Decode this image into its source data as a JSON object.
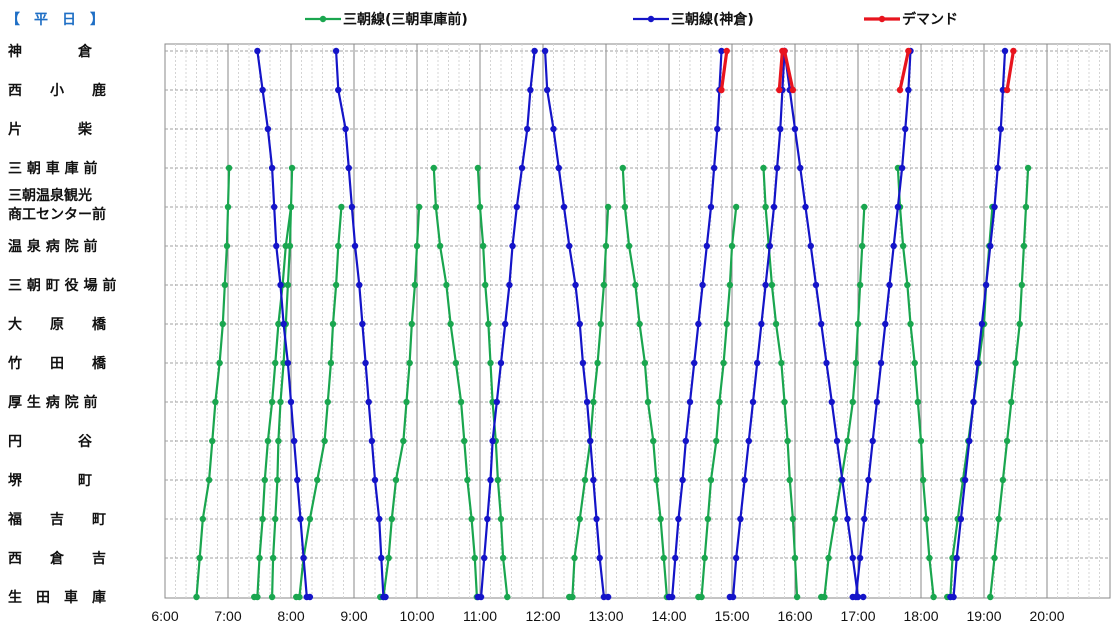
{
  "chart_data": {
    "type": "line",
    "title": "【　平　日　】",
    "x_unit": "time",
    "xlim": [
      "6:00",
      "21:00"
    ],
    "x_ticks": [
      "6:00",
      "7:00",
      "8:00",
      "9:00",
      "10:00",
      "11:00",
      "12:00",
      "13:00",
      "14:00",
      "15:00",
      "16:00",
      "17:00",
      "18:00",
      "19:00",
      "20:00"
    ],
    "stops": [
      "神　　　　倉",
      "西　　小　　鹿",
      "片　　　　柴",
      "三 朝 車 庫 前",
      "三朝温泉観光",
      "商工センター前",
      "温 泉 病 院 前",
      "三 朝 町 役 場 前",
      "大　　原　　橋",
      "竹　　田　　橋",
      "厚 生 病 院 前",
      "円　　　　谷",
      "堺　　　　町",
      "福　　吉　　町",
      "西　　倉　　吉",
      "生　田　車　庫"
    ],
    "grid": true,
    "legend_position": "top",
    "series": [
      {
        "name": "三朝線(三朝車庫前)",
        "color": "#1aa64f",
        "trips": [
          {
            "start_stop": 3,
            "times": [
              "7:01",
              "7:00",
              "6:59",
              "6:57",
              "6:55",
              "6:52",
              "6:48",
              "6:45",
              "6:42",
              "6:36",
              "6:33",
              "6:30"
            ]
          },
          {
            "start_stop": 15,
            "times": [
              "7:25",
              "7:28",
              "7:30",
              "7:33",
              "7:35",
              "7:38",
              "7:42",
              "7:45",
              "7:48",
              "7:52",
              "7:55",
              "8:00"
            ]
          },
          {
            "start_stop": 3,
            "times": [
              "8:01",
              "8:00",
              "7:59",
              "7:57",
              "7:55",
              "7:53",
              "7:50",
              "7:48",
              "7:47",
              "7:45",
              "7:43",
              "7:42"
            ]
          },
          {
            "start_stop": 15,
            "times": [
              "8:05",
              "8:08",
              "8:12",
              "8:18",
              "8:25",
              "8:32",
              "8:35",
              "8:38",
              "8:40",
              "8:43",
              "8:45",
              "8:48"
            ]
          },
          {
            "start_stop": 15,
            "times": [
              "9:25",
              "9:28",
              "9:33",
              "9:36",
              "9:40",
              "9:47",
              "9:50",
              "9:53",
              "9:55",
              "9:58",
              "10:00",
              "10:02"
            ]
          },
          {
            "start_stop": 3,
            "times": [
              "10:16",
              "10:18",
              "10:22",
              "10:28",
              "10:32",
              "10:37",
              "10:42",
              "10:45",
              "10:48",
              "10:52",
              "10:55",
              "10:57"
            ]
          },
          {
            "start_stop": 3,
            "times": [
              "10:58",
              "11:00",
              "11:03",
              "11:05",
              "11:08",
              "11:10",
              "11:12",
              "11:15",
              "11:17",
              "11:20",
              "11:22",
              "11:26"
            ]
          },
          {
            "start_stop": 15,
            "times": [
              "12:25",
              "12:28",
              "12:30",
              "12:35",
              "12:40",
              "12:45",
              "12:48",
              "12:52",
              "12:55",
              "12:58",
              "13:00",
              "13:02"
            ]
          },
          {
            "start_stop": 3,
            "times": [
              "13:16",
              "13:18",
              "13:22",
              "13:28",
              "13:32",
              "13:37",
              "13:40",
              "13:45",
              "13:48",
              "13:52",
              "13:55",
              "13:58"
            ]
          },
          {
            "start_stop": 15,
            "times": [
              "14:28",
              "14:31",
              "14:34",
              "14:37",
              "14:40",
              "14:45",
              "14:48",
              "14:52",
              "14:55",
              "14:58",
              "15:00",
              "15:04"
            ]
          },
          {
            "start_stop": 3,
            "times": [
              "15:30",
              "15:32",
              "15:35",
              "15:38",
              "15:42",
              "15:47",
              "15:50",
              "15:53",
              "15:55",
              "15:58",
              "16:00",
              "16:02"
            ]
          },
          {
            "start_stop": 15,
            "times": [
              "16:25",
              "16:28",
              "16:32",
              "16:38",
              "16:44",
              "16:50",
              "16:55",
              "16:58",
              "17:00",
              "17:02",
              "17:04",
              "17:06"
            ]
          },
          {
            "start_stop": 3,
            "times": [
              "17:38",
              "17:40",
              "17:43",
              "17:47",
              "17:50",
              "17:54",
              "17:57",
              "18:00",
              "18:02",
              "18:05",
              "18:08",
              "18:12"
            ]
          },
          {
            "start_stop": 15,
            "times": [
              "18:25",
              "18:28",
              "18:30",
              "18:35",
              "18:40",
              "18:45",
              "18:50",
              "18:55",
              "19:00",
              "19:02",
              "19:05",
              "19:08"
            ]
          },
          {
            "start_stop": 3,
            "times": [
              "19:42",
              "19:40",
              "19:38",
              "19:36",
              "19:34",
              "19:30",
              "19:26",
              "19:22",
              "19:18",
              "19:14",
              "19:10",
              "19:06"
            ]
          }
        ]
      },
      {
        "name": "三朝線(神倉)",
        "color": "#1414c8",
        "trips": [
          {
            "start_stop": 0,
            "times": [
              "7:28",
              "7:33",
              "7:38",
              "7:42",
              "7:44",
              "7:46",
              "7:50",
              "7:53",
              "7:57",
              "8:00",
              "8:03",
              "8:06",
              "8:09",
              "8:12",
              "8:15",
              "8:18"
            ]
          },
          {
            "start_stop": 0,
            "times": [
              "8:43",
              "8:45",
              "8:52",
              "8:55",
              "8:58",
              "9:01",
              "9:05",
              "9:08",
              "9:11",
              "9:14",
              "9:17",
              "9:20",
              "9:24",
              "9:26",
              "9:28",
              "9:30"
            ]
          },
          {
            "start_stop": 15,
            "times": [
              "10:58",
              "11:01",
              "11:04",
              "11:07",
              "11:10",
              "11:12",
              "11:16",
              "11:20",
              "11:24",
              "11:28",
              "11:31",
              "11:35",
              "11:40",
              "11:45",
              "11:48",
              "11:52"
            ]
          },
          {
            "start_stop": 0,
            "times": [
              "12:02",
              "12:04",
              "12:10",
              "12:15",
              "12:20",
              "12:25",
              "12:31",
              "12:35",
              "12:38",
              "12:42",
              "12:45",
              "12:48",
              "12:51",
              "12:54",
              "12:58",
              "13:02"
            ]
          },
          {
            "start_stop": 15,
            "times": [
              "14:00",
              "14:03",
              "14:06",
              "14:09",
              "14:13",
              "14:16",
              "14:20",
              "14:24",
              "14:28",
              "14:32",
              "14:36",
              "14:40",
              "14:43",
              "14:46",
              "14:48",
              "14:50"
            ]
          },
          {
            "start_stop": 15,
            "times": [
              "14:58",
              "15:01",
              "15:04",
              "15:08",
              "15:12",
              "15:16",
              "15:20",
              "15:24",
              "15:28",
              "15:32",
              "15:36",
              "15:40",
              "15:43",
              "15:46",
              "15:48",
              "15:50"
            ]
          },
          {
            "start_stop": 0,
            "times": [
              "15:50",
              "15:55",
              "16:00",
              "16:05",
              "16:10",
              "16:15",
              "16:20",
              "16:25",
              "16:30",
              "16:35",
              "16:40",
              "16:45",
              "16:50",
              "16:55",
              "17:00",
              "17:05"
            ]
          },
          {
            "start_stop": 15,
            "times": [
              "16:55",
              "16:58",
              "17:02",
              "17:06",
              "17:10",
              "17:14",
              "17:18",
              "17:22",
              "17:26",
              "17:30",
              "17:34",
              "17:38",
              "17:42",
              "17:45",
              "17:48",
              "17:50"
            ]
          },
          {
            "start_stop": 15,
            "times": [
              "18:28",
              "18:31",
              "18:34",
              "18:38",
              "18:42",
              "18:46",
              "18:50",
              "18:54",
              "18:58",
              "19:02",
              "19:06",
              "19:10",
              "19:13",
              "19:16",
              "19:18",
              "19:20"
            ]
          }
        ]
      },
      {
        "name": "デマンド",
        "color": "#e8141e",
        "trips": [
          {
            "start_stop": 1,
            "times": [
              "14:50",
              "14:55"
            ]
          },
          {
            "start_stop": 0,
            "times": [
              "15:48",
              "15:45"
            ]
          },
          {
            "start_stop": 0,
            "times": [
              "15:50",
              "15:58"
            ]
          },
          {
            "start_stop": 1,
            "times": [
              "17:40",
              "17:48"
            ]
          },
          {
            "start_stop": 1,
            "times": [
              "19:22",
              "19:28"
            ]
          }
        ]
      }
    ]
  }
}
